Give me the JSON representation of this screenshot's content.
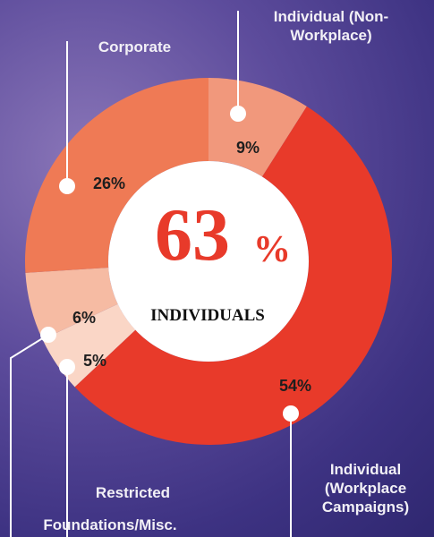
{
  "chart_data": {
    "type": "donut",
    "categories": [
      "Individual (Non-Workplace)",
      "Individual (Workplace Campaigns)",
      "Restricted",
      "Foundations/Misc.",
      "Corporate"
    ],
    "values": [
      9,
      54,
      5,
      6,
      26
    ],
    "value_labels": [
      "9%",
      "54%",
      "5%",
      "6%",
      "26%"
    ],
    "colors": [
      "#f1987c",
      "#e83a2a",
      "#fad6c6",
      "#f6bba3",
      "#ef7a55"
    ],
    "center_value": 63,
    "center_symbol": "%",
    "center_label": "INDIVIDUALS"
  }
}
